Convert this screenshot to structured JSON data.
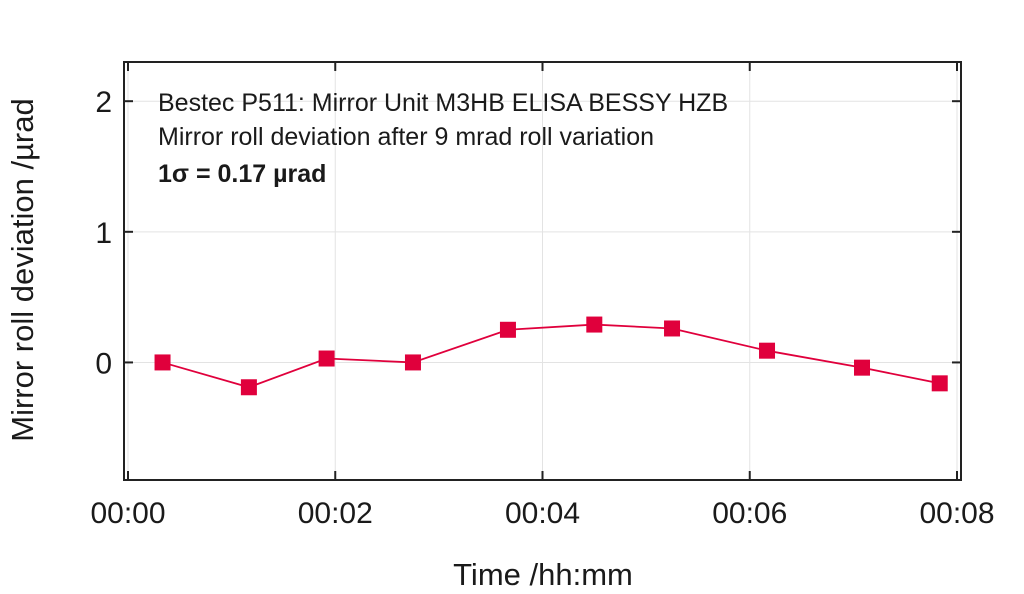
{
  "chart_data": {
    "type": "line",
    "xlabel": "Time /hh:mm",
    "ylabel": "Mirror roll deviation /µrad",
    "annotations": [
      "Bestec P511: Mirror Unit M3HB ELISA BESSY HZB",
      "Mirror roll deviation after 9 mrad roll variation",
      "1σ = 0.17 µrad"
    ],
    "xlim": [
      "00:00",
      "00:08"
    ],
    "ylim": [
      -0.9,
      2.3
    ],
    "x_ticks": [
      "00:00",
      "00:02",
      "00:04",
      "00:06",
      "00:08"
    ],
    "y_ticks": [
      "0",
      "1",
      "2"
    ],
    "grid": true,
    "marker": "square",
    "color": "#e0003c",
    "series": [
      {
        "x": [
          "00:00:20",
          "00:01:10",
          "00:01:55",
          "00:02:45",
          "00:03:40",
          "00:04:30",
          "00:05:15",
          "00:06:10",
          "00:07:05",
          "00:07:50"
        ],
        "y": [
          0.0,
          -0.19,
          0.03,
          0.0,
          0.25,
          0.29,
          0.26,
          0.09,
          -0.04,
          -0.16
        ]
      }
    ]
  }
}
